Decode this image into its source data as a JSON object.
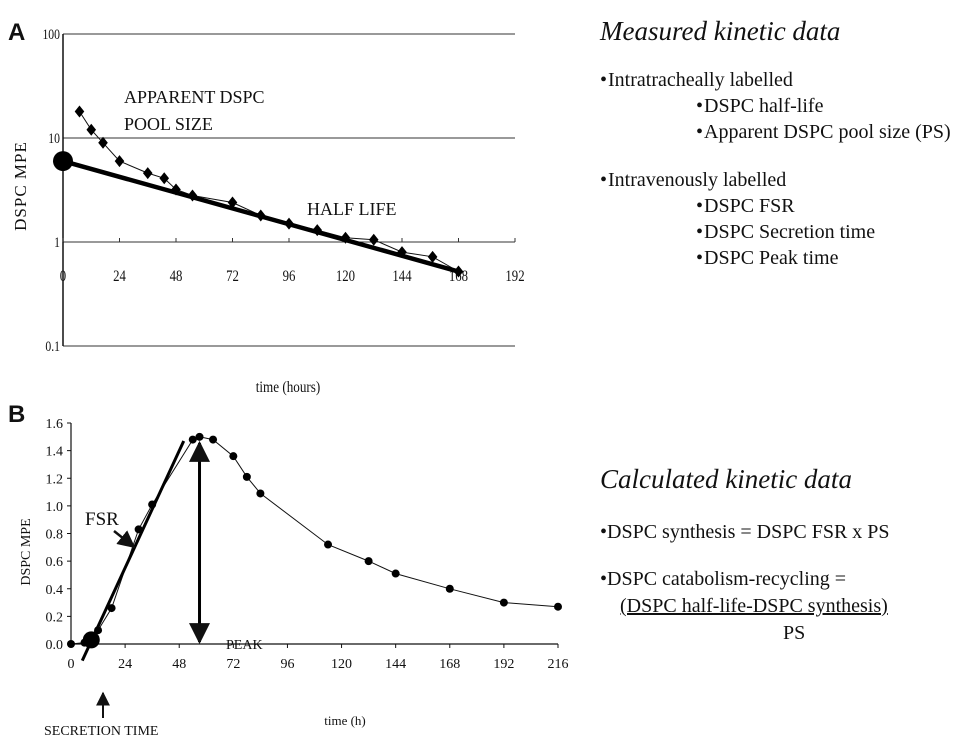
{
  "panel_a": {
    "letter": "A",
    "annotations": {
      "pool_size_line1": "APPARENT DSPC",
      "pool_size_line2": "POOL SIZE",
      "half_life": "HALF LIFE"
    }
  },
  "panel_b": {
    "letter": "B",
    "annotations": {
      "fsr": "FSR",
      "peak": "PEAK",
      "secretion_time": "SECRETION TIME"
    }
  },
  "chart_data": [
    {
      "type": "scatter",
      "id": "panel-a",
      "xlabel": "time (hours)",
      "ylabel": "DSPC MPE",
      "x_ticks": [
        0,
        24,
        48,
        72,
        96,
        120,
        144,
        168,
        192
      ],
      "x_tick_labels": [
        "0",
        "24",
        "48",
        "72",
        "96",
        "120",
        "144",
        "168",
        "192"
      ],
      "y_ticks": [
        0.1,
        1,
        10,
        100
      ],
      "y_tick_labels": [
        "0.1",
        "1",
        "10",
        "100"
      ],
      "xlim": [
        0,
        192
      ],
      "ylim": [
        0.1,
        100
      ],
      "y_scale": "log",
      "grid": "horizontal",
      "series": [
        {
          "marker": "diamond",
          "x": [
            7,
            12,
            17,
            24,
            36,
            43,
            48,
            55,
            72,
            84,
            96,
            108,
            120,
            132,
            144,
            157,
            168
          ],
          "y": [
            18,
            12,
            9,
            6,
            4.6,
            4.1,
            3.2,
            2.8,
            2.4,
            1.8,
            1.5,
            1.3,
            1.1,
            1.05,
            0.8,
            0.72,
            0.52
          ]
        },
        {
          "style": "regression-line",
          "x": [
            0,
            168
          ],
          "y": [
            6,
            0.52
          ]
        },
        {
          "marker": "large-dot",
          "x": [
            0
          ],
          "y": [
            6
          ]
        }
      ]
    },
    {
      "type": "line",
      "id": "panel-b",
      "xlabel": "time (h)",
      "ylabel": "DSPC MPE",
      "x_ticks": [
        0,
        24,
        48,
        72,
        96,
        120,
        144,
        168,
        192,
        216
      ],
      "x_tick_labels": [
        "0",
        "24",
        "48",
        "72",
        "96",
        "120",
        "144",
        "168",
        "192",
        "216"
      ],
      "y_ticks": [
        0,
        0.2,
        0.4,
        0.6,
        0.8,
        1.0,
        1.2,
        1.4,
        1.6
      ],
      "y_tick_labels": [
        "0.0",
        "0.2",
        "0.4",
        "0.6",
        "0.8",
        "1.0",
        "1.2",
        "1.4",
        "1.6"
      ],
      "xlim": [
        0,
        216
      ],
      "ylim": [
        0,
        1.6
      ],
      "grid": "none",
      "series": [
        {
          "marker": "dot",
          "x": [
            0,
            6,
            9,
            12,
            18,
            30,
            36,
            54,
            57,
            63,
            72,
            78,
            84,
            114,
            132,
            144,
            168,
            192,
            216
          ],
          "y": [
            0,
            0.01,
            0.03,
            0.1,
            0.26,
            0.83,
            1.01,
            1.48,
            1.5,
            1.48,
            1.36,
            1.21,
            1.09,
            0.72,
            0.6,
            0.51,
            0.4,
            0.3,
            0.27
          ]
        },
        {
          "style": "fsr-line",
          "x": [
            5,
            50
          ],
          "y": [
            -0.12,
            1.47
          ]
        },
        {
          "marker": "large-dot",
          "x": [
            9
          ],
          "y": [
            0.03
          ]
        },
        {
          "style": "peak-arrow",
          "x": [
            57,
            57
          ],
          "y": [
            0.0,
            1.47
          ]
        }
      ]
    }
  ],
  "right": {
    "measured_title": "Measured kinetic data",
    "measured_items": [
      {
        "text": "Intratracheally labelled",
        "level": 0
      },
      {
        "text": "DSPC half-life",
        "level": 1
      },
      {
        "text": "Apparent DSPC pool size (PS)",
        "level": 1
      },
      {
        "text": "Intravenously labelled",
        "level": 0
      },
      {
        "text": "DSPC FSR",
        "level": 1
      },
      {
        "text": "DSPC Secretion time",
        "level": 1
      },
      {
        "text": "DSPC Peak time",
        "level": 1
      }
    ],
    "bullet": "•",
    "calculated_title": "Calculated kinetic data",
    "synthesis": "DSPC synthesis = DSPC FSR x PS",
    "catabolism": "DSPC catabolism-recycling =",
    "numerator": "(DSPC half-life-DSPC synthesis)",
    "denominator": "PS"
  }
}
